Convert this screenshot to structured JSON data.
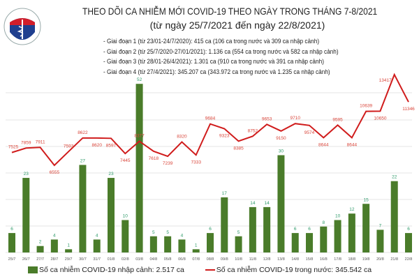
{
  "header": {
    "title": "THEO DÕI CA NHIỄM MỚI COVID-19 THEO NGÀY TRONG THÁNG 7-8/2021",
    "subtitle": "(từ ngày 25/7/2021 đến ngày 22/8/2021)",
    "notes": [
      "- Giai đoạn 1 (từ 23/01-24/7/2020): 415 ca (106 ca trong nước và 309 ca nhập cảnh)",
      "- Giai đoạn 2 (từ 25/7/2020-27/01/2021): 1.136 ca (554 ca trong nước và 582 ca nhập cảnh)",
      "- Giai đoạn 3 (từ 28/01-26/4/2021): 1.301 ca (910 ca trong nước và 391 ca nhập cảnh)",
      "- Giai đoạn 4 (từ 27/4/2021): 345.207 ca (343.972 ca trong nước và 1.235 ca nhập cảnh)"
    ],
    "logo_text": "BỘ Y TẾ"
  },
  "chart_data": {
    "type": "bar+line",
    "categories": [
      "25/7",
      "26/7",
      "27/7",
      "28/7",
      "29/7",
      "30/7",
      "31/7",
      "01/8",
      "02/8",
      "03/8",
      "04/8",
      "05/8",
      "06/8",
      "07/8",
      "08/8",
      "09/8",
      "10/8",
      "11/8",
      "12/8",
      "13/8",
      "14/8",
      "15/8",
      "16/8",
      "17/8",
      "18/8",
      "19/8",
      "20/8",
      "21/8",
      "22/8"
    ],
    "series": [
      {
        "name": "Số ca nhiễm COVID-19 nhập cảnh: 2.517 ca",
        "type": "bar",
        "color": "#4a7c2a",
        "values": [
          6,
          23,
          2,
          4,
          1,
          27,
          4,
          23,
          10,
          52,
          5,
          5,
          4,
          1,
          6,
          17,
          5,
          14,
          14,
          30,
          6,
          6,
          8,
          10,
          12,
          15,
          7,
          22,
          6
        ]
      },
      {
        "name": "Số ca nhiễm COVID-19 trong nước: 345.542 ca",
        "type": "line",
        "color": "#d01c1c",
        "values": [
          7525,
          7859,
          7911,
          6555,
          7593,
          8622,
          8620,
          8597,
          7445,
          8377,
          7618,
          7239,
          8320,
          7333,
          9684,
          9323,
          8385,
          8752,
          9653,
          9150,
          9710,
          9574,
          8644,
          9595,
          8644,
          10639,
          10650,
          13417,
          11346
        ]
      }
    ],
    "grid": true,
    "legend": "bottom",
    "data_labels": true
  }
}
